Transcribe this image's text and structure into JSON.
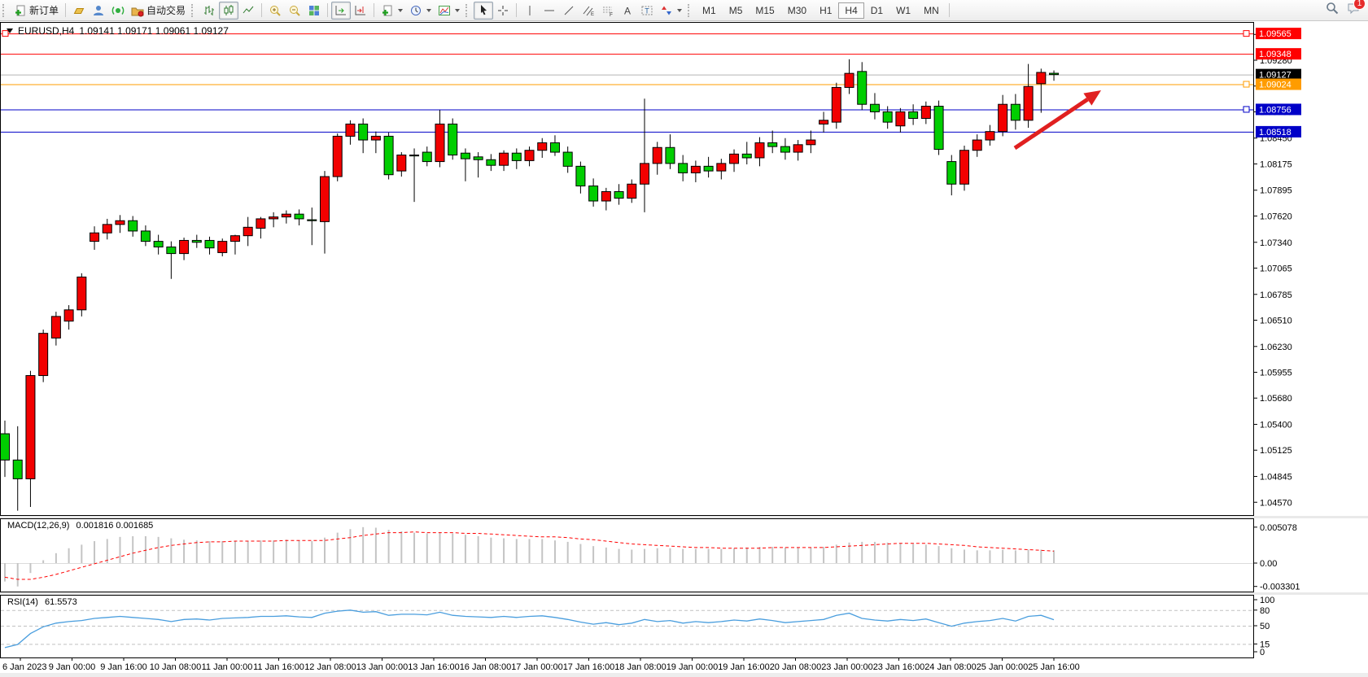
{
  "toolbar": {
    "new_order_label": "新订单",
    "auto_trading_label": "自动交易",
    "timeframes": [
      "M1",
      "M5",
      "M15",
      "M30",
      "H1",
      "H4",
      "D1",
      "W1",
      "MN"
    ],
    "active_timeframe": "H4",
    "notification_count": "1"
  },
  "chart_header": {
    "symbol_period": "EURUSD,H4",
    "ohlc": "1.09141 1.09171 1.09061 1.09127"
  },
  "indicators": {
    "macd": {
      "name": "MACD(12,26,9)",
      "values": "0.001816 0.001685"
    },
    "rsi": {
      "name": "RSI(14)",
      "value": "61.5573"
    }
  },
  "colors": {
    "bull": "#f20000",
    "bear": "#00ce00",
    "wick": "#000000",
    "macd_hist": "#c4c4c4",
    "macd_signal": "#ff0000",
    "rsi_line": "#4a9ede",
    "level_dash": "#c0c0c0",
    "arrow": "#e02020",
    "current_line": "#b4b4b4"
  },
  "chart_data": {
    "type": "candlestick",
    "symbol": "EURUSD",
    "timeframe": "H4",
    "price_axis_ticks": [
      "1.09555",
      "1.09280",
      "1.09005",
      "1.08730",
      "1.08450",
      "1.08175",
      "1.07895",
      "1.07620",
      "1.07340",
      "1.07065",
      "1.06785",
      "1.06510",
      "1.06230",
      "1.05955",
      "1.05680",
      "1.05400",
      "1.05125",
      "1.04845",
      "1.04570"
    ],
    "price_lines": [
      {
        "label": "1.09565",
        "price": 1.09565,
        "color": "#ff0000",
        "badge": "#ff0000",
        "handles": [
          "left",
          "right"
        ]
      },
      {
        "label": "1.09348",
        "price": 1.09348,
        "color": "#ff0000",
        "badge": "#ff0000",
        "handles": []
      },
      {
        "label": "1.09127",
        "price": 1.09127,
        "color": "#b4b4b4",
        "badge": "#000000",
        "handles": [],
        "current": true
      },
      {
        "label": "1.09024",
        "price": 1.09024,
        "color": "#ff9c00",
        "badge": "#ff9c00",
        "handles": [
          "right"
        ]
      },
      {
        "label": "1.08756",
        "price": 1.08756,
        "color": "#0000c8",
        "badge": "#0000c8",
        "handles": [
          "right"
        ]
      },
      {
        "label": "1.08518",
        "price": 1.08518,
        "color": "#0000c8",
        "badge": "#0000c8",
        "handles": []
      }
    ],
    "time_labels": [
      "6 Jan 2023",
      "9 Jan 00:00",
      "9 Jan 16:00",
      "10 Jan 08:00",
      "11 Jan 00:00",
      "11 Jan 16:00",
      "12 Jan 08:00",
      "13 Jan 00:00",
      "13 Jan 16:00",
      "16 Jan 08:00",
      "17 Jan 00:00",
      "17 Jan 16:00",
      "18 Jan 08:00",
      "19 Jan 00:00",
      "19 Jan 16:00",
      "20 Jan 08:00",
      "23 Jan 00:00",
      "23 Jan 16:00",
      "24 Jan 08:00",
      "25 Jan 00:00",
      "25 Jan 16:00"
    ],
    "candles": [
      [
        1.053,
        1.0544,
        1.0484,
        1.0502
      ],
      [
        1.0502,
        1.0538,
        1.0448,
        1.0482
      ],
      [
        1.0482,
        1.0597,
        1.0452,
        1.0592
      ],
      [
        1.0592,
        1.0641,
        1.0585,
        1.0637
      ],
      [
        1.0632,
        1.066,
        1.0624,
        1.0655
      ],
      [
        1.065,
        1.0667,
        1.0641,
        1.0662
      ],
      [
        1.0662,
        1.0701,
        1.0655,
        1.0697
      ],
      [
        1.0735,
        1.0751,
        1.0726,
        1.0744
      ],
      [
        1.0744,
        1.0759,
        1.0737,
        1.0753
      ],
      [
        1.0753,
        1.0763,
        1.0744,
        1.0757
      ],
      [
        1.0757,
        1.0762,
        1.074,
        1.0746
      ],
      [
        1.0746,
        1.0752,
        1.073,
        1.0735
      ],
      [
        1.0735,
        1.0742,
        1.0721,
        1.0729
      ],
      [
        1.0729,
        1.0735,
        1.0695,
        1.0722
      ],
      [
        1.0722,
        1.0739,
        1.0715,
        1.0736
      ],
      [
        1.0736,
        1.0742,
        1.0728,
        1.0734
      ],
      [
        1.0736,
        1.074,
        1.0721,
        1.0728
      ],
      [
        1.0723,
        1.0738,
        1.0719,
        1.0735
      ],
      [
        1.0735,
        1.0742,
        1.0721,
        1.0741
      ],
      [
        1.0741,
        1.0761,
        1.073,
        1.075
      ],
      [
        1.0749,
        1.0761,
        1.0738,
        1.0759
      ],
      [
        1.0759,
        1.0766,
        1.075,
        1.0761
      ],
      [
        1.0761,
        1.0768,
        1.0754,
        1.0764
      ],
      [
        1.0764,
        1.0769,
        1.0752,
        1.0759
      ],
      [
        1.0758,
        1.0771,
        1.0731,
        1.0757
      ],
      [
        1.0756,
        1.081,
        1.0722,
        1.0804
      ],
      [
        1.0804,
        1.085,
        1.0799,
        1.0847
      ],
      [
        1.0847,
        1.0864,
        1.0838,
        1.086
      ],
      [
        1.086,
        1.0866,
        1.0829,
        1.0843
      ],
      [
        1.0843,
        1.0852,
        1.0829,
        1.0847
      ],
      [
        1.0847,
        1.0851,
        1.0801,
        1.0806
      ],
      [
        1.081,
        1.083,
        1.0804,
        1.0827
      ],
      [
        1.0827,
        1.0834,
        1.0777,
        1.0826
      ],
      [
        1.083,
        1.0836,
        1.0815,
        1.082
      ],
      [
        1.082,
        1.0875,
        1.0814,
        1.086
      ],
      [
        1.086,
        1.0866,
        1.0822,
        1.0827
      ],
      [
        1.0829,
        1.0834,
        1.0799,
        1.0823
      ],
      [
        1.0825,
        1.083,
        1.0803,
        1.0822
      ],
      [
        1.0822,
        1.0828,
        1.081,
        1.0816
      ],
      [
        1.0816,
        1.0832,
        1.081,
        1.0829
      ],
      [
        1.0829,
        1.0834,
        1.0812,
        1.0821
      ],
      [
        1.0821,
        1.0836,
        1.0815,
        1.0832
      ],
      [
        1.0832,
        1.0845,
        1.0824,
        1.084
      ],
      [
        1.084,
        1.0848,
        1.0826,
        1.083
      ],
      [
        1.083,
        1.0836,
        1.0808,
        1.0815
      ],
      [
        1.0815,
        1.082,
        1.0786,
        1.0794
      ],
      [
        1.0794,
        1.0802,
        1.0772,
        1.0778
      ],
      [
        1.0778,
        1.0792,
        1.0768,
        1.0788
      ],
      [
        1.0788,
        1.0796,
        1.0774,
        1.0781
      ],
      [
        1.0781,
        1.0801,
        1.0776,
        1.0796
      ],
      [
        1.0796,
        1.0887,
        1.0766,
        1.0818
      ],
      [
        1.0818,
        1.0841,
        1.0806,
        1.0835
      ],
      [
        1.0835,
        1.0849,
        1.0812,
        1.0818
      ],
      [
        1.0818,
        1.0827,
        1.0799,
        1.0808
      ],
      [
        1.0808,
        1.0821,
        1.0798,
        1.0815
      ],
      [
        1.0815,
        1.0825,
        1.0803,
        1.081
      ],
      [
        1.081,
        1.0823,
        1.0801,
        1.0818
      ],
      [
        1.0818,
        1.0833,
        1.0809,
        1.0828
      ],
      [
        1.0828,
        1.0841,
        1.0817,
        1.0824
      ],
      [
        1.0824,
        1.0846,
        1.0815,
        1.084
      ],
      [
        1.084,
        1.0853,
        1.0829,
        1.0836
      ],
      [
        1.0836,
        1.0845,
        1.0822,
        1.083
      ],
      [
        1.083,
        1.0843,
        1.0821,
        1.0838
      ],
      [
        1.0838,
        1.0853,
        1.0829,
        1.0843
      ],
      [
        1.086,
        1.0873,
        1.0851,
        1.0864
      ],
      [
        1.0862,
        1.0904,
        1.0855,
        1.0899
      ],
      [
        1.0899,
        1.0929,
        1.0892,
        1.0914
      ],
      [
        1.0916,
        1.0926,
        1.0875,
        1.0881
      ],
      [
        1.0881,
        1.0893,
        1.0865,
        1.0873
      ],
      [
        1.0873,
        1.0879,
        1.0855,
        1.0862
      ],
      [
        1.0858,
        1.0877,
        1.0851,
        1.0873
      ],
      [
        1.0873,
        1.0881,
        1.0859,
        1.0866
      ],
      [
        1.0866,
        1.0884,
        1.086,
        1.0879
      ],
      [
        1.0879,
        1.0885,
        1.0827,
        1.0833
      ],
      [
        1.082,
        1.0827,
        1.0784,
        1.0796
      ],
      [
        1.0796,
        1.0837,
        1.0789,
        1.0832
      ],
      [
        1.0832,
        1.0849,
        1.0825,
        1.0843
      ],
      [
        1.0843,
        1.0859,
        1.0837,
        1.0852
      ],
      [
        1.0852,
        1.0891,
        1.0847,
        1.0881
      ],
      [
        1.0881,
        1.0892,
        1.0854,
        1.0864
      ],
      [
        1.0864,
        1.0924,
        1.0856,
        1.09
      ],
      [
        1.0903,
        1.0919,
        1.0872,
        1.0915
      ],
      [
        1.09141,
        1.09171,
        1.09061,
        1.09127
      ]
    ],
    "macd": {
      "axis_labels": [
        "0.005078",
        "0.00",
        "-0.003301"
      ],
      "histogram": [
        -0.0026,
        -0.0033,
        -0.0014,
        0.0004,
        0.0014,
        0.0021,
        0.0026,
        0.0031,
        0.0034,
        0.0037,
        0.0038,
        0.0038,
        0.0037,
        0.0035,
        0.0033,
        0.0032,
        0.0031,
        0.0031,
        0.0031,
        0.0031,
        0.0032,
        0.0032,
        0.0033,
        0.0032,
        0.0031,
        0.0036,
        0.0043,
        0.0048,
        0.00508,
        0.005,
        0.0047,
        0.0045,
        0.0043,
        0.0042,
        0.0043,
        0.0042,
        0.004,
        0.0038,
        0.0036,
        0.0035,
        0.0034,
        0.0034,
        0.0034,
        0.0032,
        0.003,
        0.0027,
        0.0024,
        0.0022,
        0.002,
        0.0019,
        0.002,
        0.0021,
        0.0021,
        0.002,
        0.002,
        0.002,
        0.002,
        0.0021,
        0.0022,
        0.0023,
        0.0023,
        0.0022,
        0.0022,
        0.0022,
        0.0023,
        0.0026,
        0.0029,
        0.003,
        0.003,
        0.0029,
        0.0028,
        0.0027,
        0.0026,
        0.0024,
        0.0021,
        0.0019,
        0.0018,
        0.0018,
        0.0019,
        0.0018,
        0.0019,
        0.0019,
        0.001816
      ],
      "signal": [
        -0.002,
        -0.0023,
        -0.0023,
        -0.002,
        -0.0016,
        -0.0011,
        -0.0006,
        -0.0001,
        0.0004,
        0.0009,
        0.0014,
        0.0018,
        0.0022,
        0.0025,
        0.0027,
        0.0029,
        0.003,
        0.003,
        0.0031,
        0.0031,
        0.0031,
        0.0031,
        0.0032,
        0.0032,
        0.0032,
        0.0032,
        0.0034,
        0.0036,
        0.0039,
        0.0041,
        0.0043,
        0.0043,
        0.0044,
        0.0043,
        0.0043,
        0.0043,
        0.0042,
        0.0042,
        0.0041,
        0.004,
        0.0039,
        0.0038,
        0.0037,
        0.0037,
        0.0036,
        0.0034,
        0.0033,
        0.0031,
        0.0029,
        0.0027,
        0.0026,
        0.0025,
        0.0024,
        0.0023,
        0.0022,
        0.0022,
        0.0021,
        0.0021,
        0.0021,
        0.0021,
        0.0022,
        0.0022,
        0.0022,
        0.0022,
        0.0022,
        0.0023,
        0.0024,
        0.0025,
        0.0026,
        0.0027,
        0.0028,
        0.0028,
        0.0028,
        0.0027,
        0.0026,
        0.0025,
        0.0023,
        0.0022,
        0.0021,
        0.002,
        0.0019,
        0.0018,
        0.001685
      ]
    },
    "rsi": {
      "axis_labels": [
        "100",
        "80",
        "50",
        "15",
        "0"
      ],
      "levels": [
        80,
        50,
        15
      ],
      "series": [
        8,
        14,
        35,
        48,
        55,
        58,
        60,
        64,
        66,
        68,
        66,
        64,
        62,
        58,
        62,
        63,
        61,
        64,
        65,
        66,
        68,
        68,
        69,
        67,
        66,
        74,
        78,
        80,
        76,
        77,
        70,
        72,
        72,
        71,
        76,
        70,
        68,
        67,
        66,
        68,
        66,
        68,
        69,
        66,
        62,
        57,
        53,
        56,
        52,
        55,
        62,
        58,
        60,
        55,
        58,
        56,
        58,
        61,
        59,
        63,
        60,
        56,
        58,
        60,
        62,
        70,
        74,
        64,
        61,
        59,
        62,
        60,
        63,
        56,
        49,
        55,
        58,
        60,
        64,
        59,
        68,
        70,
        61.5
      ]
    },
    "annotations": {
      "arrow": {
        "from": [
          1247,
          182
        ],
        "to": [
          1353,
          111
        ]
      }
    }
  }
}
